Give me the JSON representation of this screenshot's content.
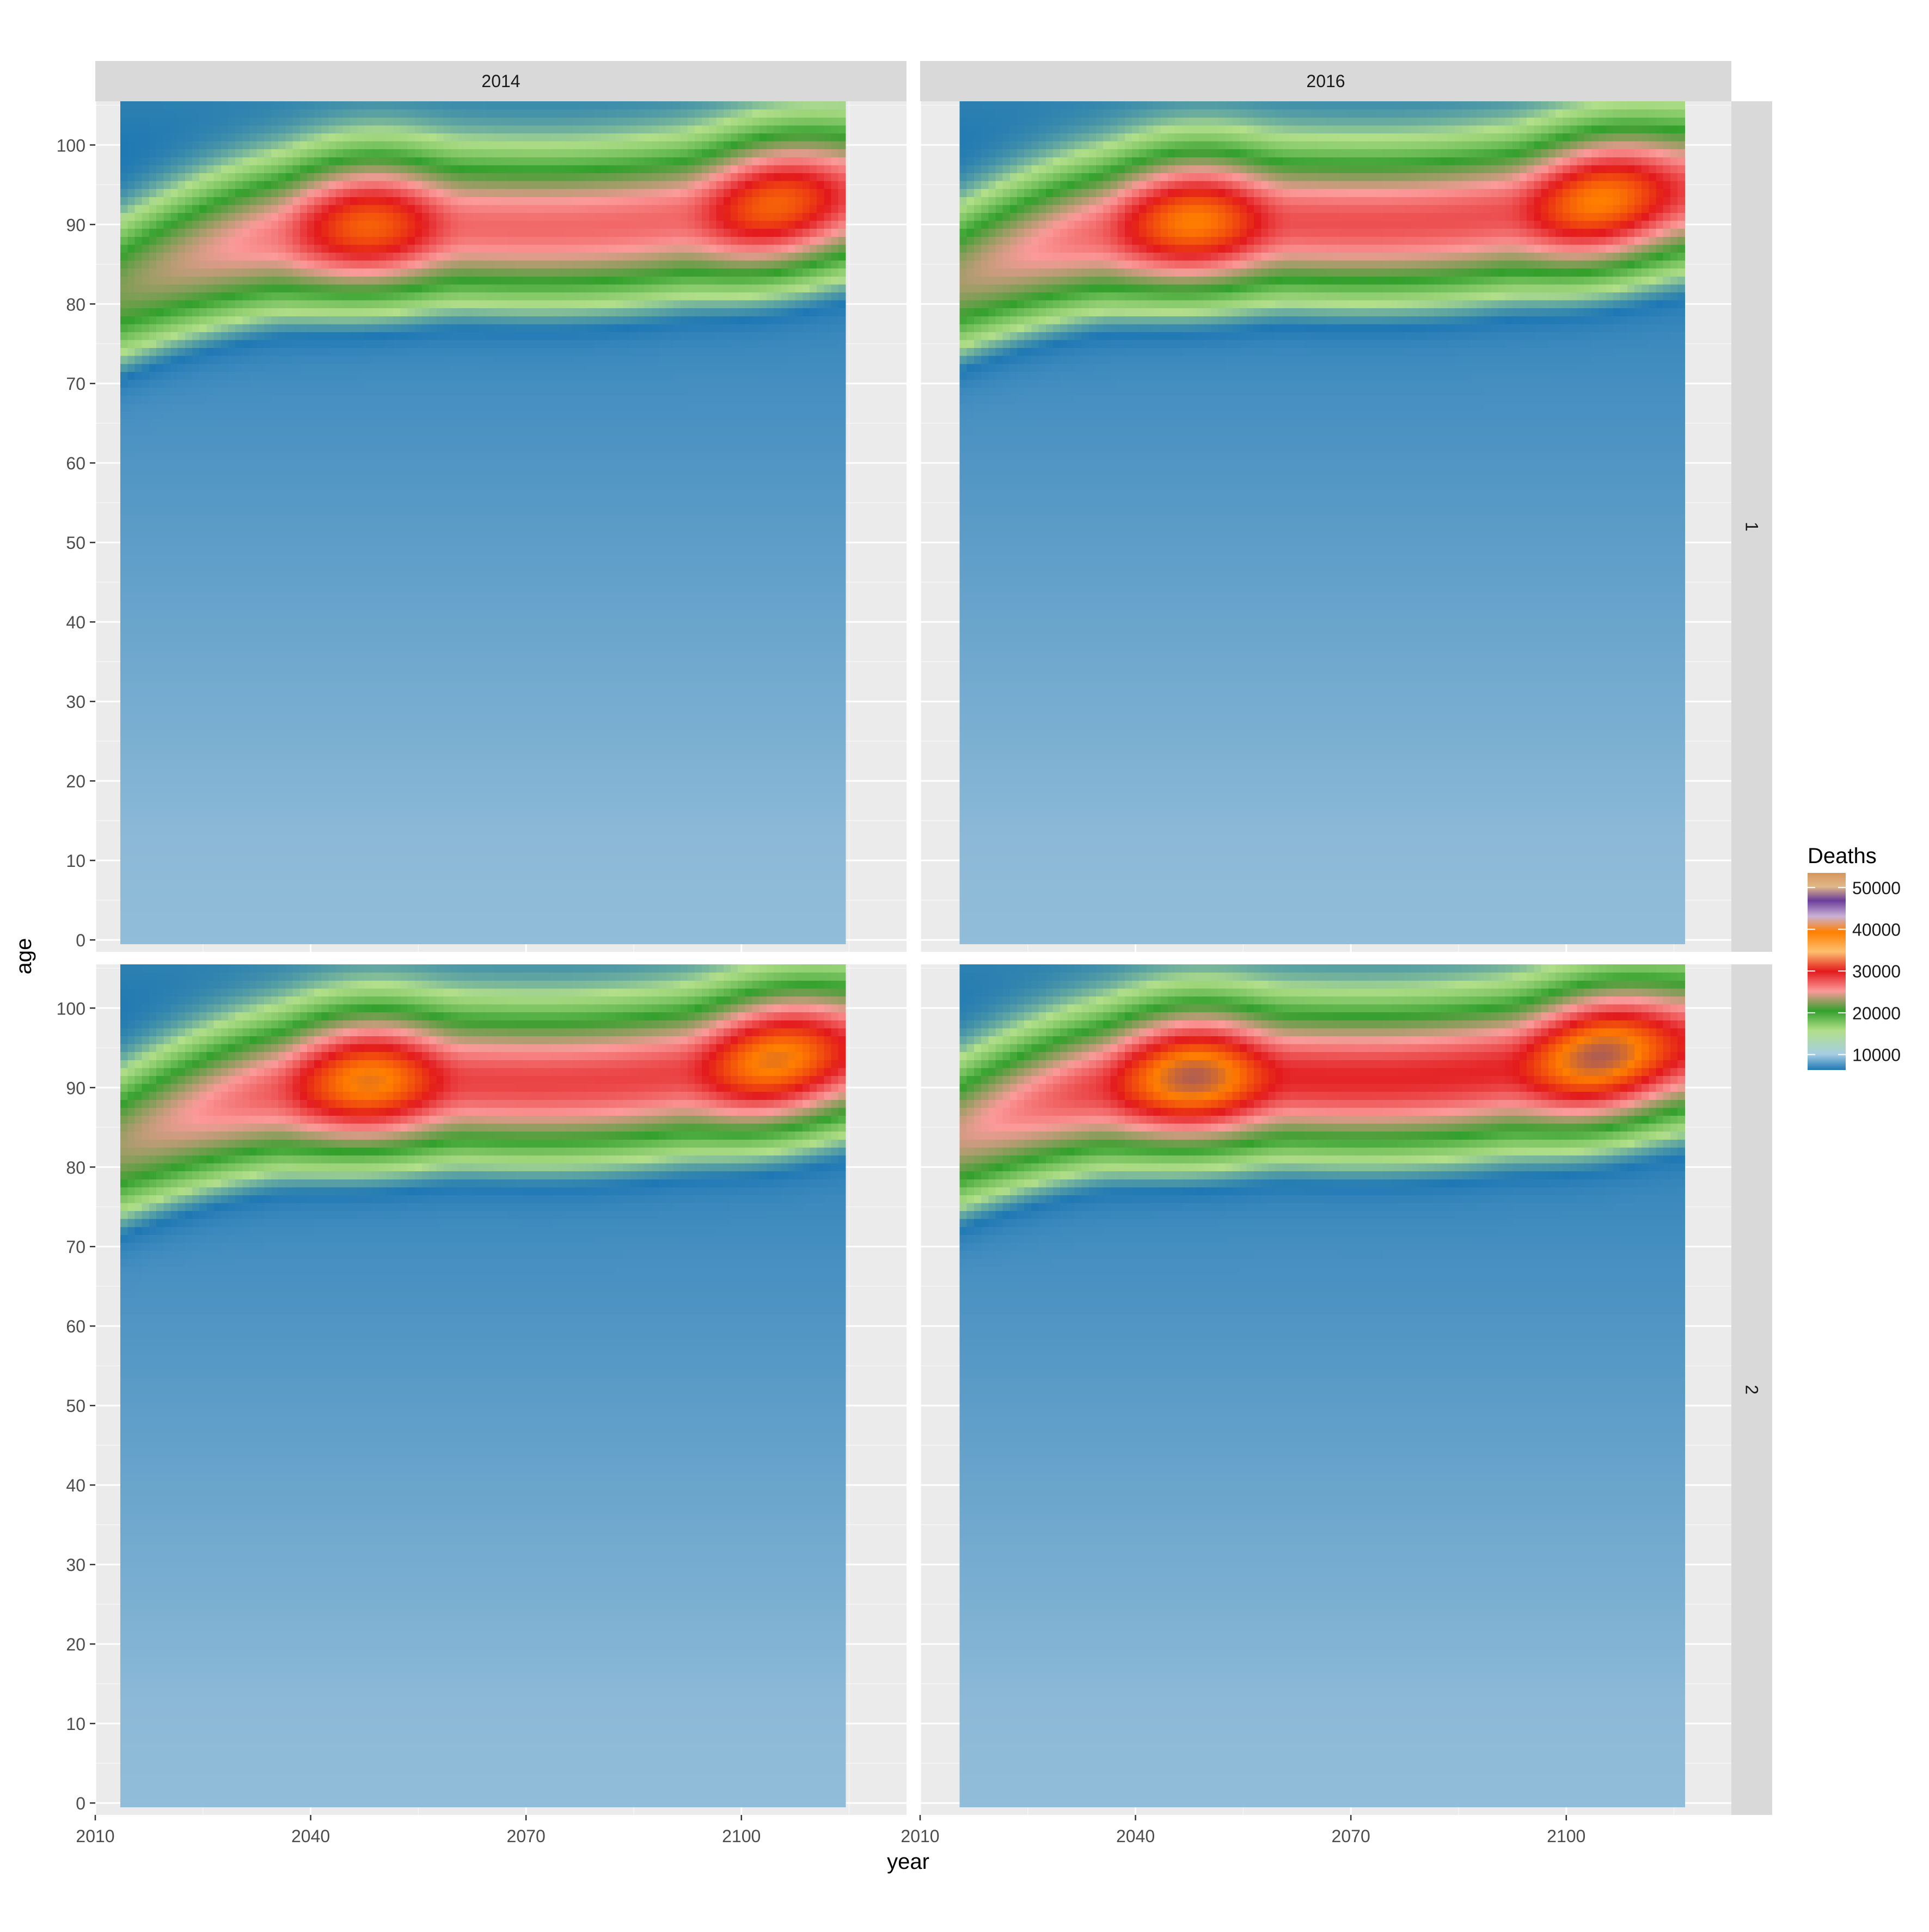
{
  "chart_data": {
    "type": "heatmap",
    "title": "",
    "xlabel": "year",
    "ylabel": "age",
    "x_range": [
      2010,
      2123
    ],
    "y_range": [
      -1.5,
      105.5
    ],
    "x_ticks": [
      2010,
      2040,
      2070,
      2100
    ],
    "y_ticks": [
      0,
      10,
      20,
      30,
      40,
      50,
      60,
      70,
      80,
      90,
      100
    ],
    "x_data_range": [
      2014,
      2114
    ],
    "y_data_range": [
      0,
      105
    ],
    "grid": true,
    "facets": {
      "columns": [
        "2014",
        "2016"
      ],
      "rows": [
        "1",
        "2"
      ],
      "panels": [
        {
          "col": "2014",
          "row": "1",
          "data_start_year": 2014,
          "data_end_year": 2114
        },
        {
          "col": "2016",
          "row": "1",
          "data_start_year": 2016,
          "data_end_year": 2116
        },
        {
          "col": "2014",
          "row": "2",
          "data_start_year": 2014,
          "data_end_year": 2114
        },
        {
          "col": "2016",
          "row": "2",
          "data_start_year": 2016,
          "data_end_year": 2116
        }
      ]
    },
    "legend": {
      "title": "Deaths",
      "position": "right",
      "breaks": [
        10000,
        20000,
        30000,
        40000,
        50000
      ],
      "labels": [
        "10000",
        "20000",
        "30000",
        "40000",
        "50000"
      ],
      "colors": [
        "#1f78b4",
        "#a6cee3",
        "#33a02c",
        "#b2df8a",
        "#e31a1c",
        "#fb9a99",
        "#ff7f00",
        "#fdbf6f",
        "#6a3d9a",
        "#cab2d6",
        "#d6955b"
      ]
    }
  }
}
